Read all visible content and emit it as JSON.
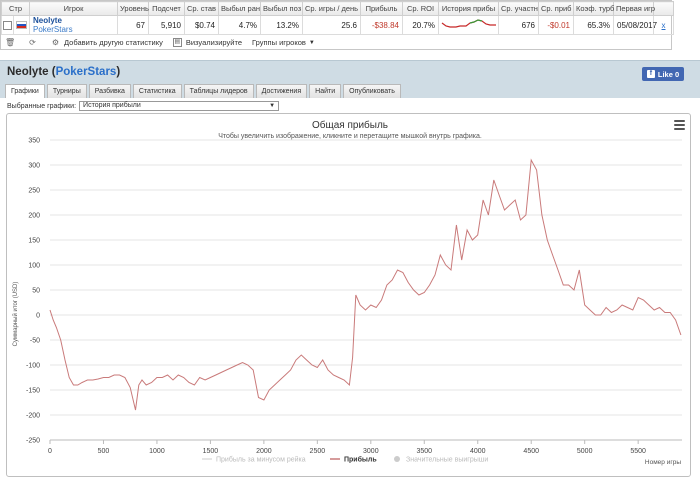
{
  "stats": {
    "columns": [
      "Стр",
      "Игрок",
      "Уровень",
      "Подсчет",
      "Ср. став",
      "Выбыл ран",
      "Выбыл поз",
      "Ср. игры / день",
      "Прибыль",
      "Ср. ROI",
      "История прибы",
      "Ср. участн",
      "Ср. приб",
      "Коэф. турб",
      "Первая игр"
    ],
    "row": {
      "player_name": "Neolyte",
      "player_site": "PokerStars",
      "level": "67",
      "count": "5,910",
      "avg_stake": "$0.74",
      "early_out": "4.7%",
      "late_out": "13.2%",
      "games_per_day": "25.6",
      "profit": "-$38.84",
      "roi": "20.7%",
      "avg_entrants": "676",
      "avg_profit": "-$0.01",
      "turbo_ratio": "65.3%",
      "first_game": "05/08/2017",
      "remove": "x"
    },
    "toolbar": {
      "add_stat": "Добавить другую статистику",
      "visualize": "Визуализируйте",
      "player_groups": "Группы игроков"
    }
  },
  "header": {
    "player": "Neolyte",
    "site": "PokerStars",
    "like_label": "Like 0"
  },
  "tabs": [
    "Графики",
    "Турниры",
    "Разбивка",
    "Статистика",
    "Таблицы лидеров",
    "Достижения",
    "Найти",
    "Опубликовать"
  ],
  "graphs": {
    "label": "Выбранные графики:",
    "selected": "История прибыли"
  },
  "colors": {
    "line": "#c97a7a",
    "header_bg": "#cfdce4",
    "link": "#2a6fc9",
    "negative": "#c0392b"
  },
  "chart_data": {
    "type": "line",
    "title": "Общая прибыль",
    "subtitle": "Чтобы увеличить изображение, кликните и перетащите мышкой внутрь графика.",
    "xlabel": "Номер игры",
    "ylabel": "Суммарный итог (USD)",
    "xlim": [
      0,
      5910
    ],
    "ylim": [
      -250,
      350
    ],
    "x_ticks": [
      0,
      500,
      1000,
      1500,
      2000,
      2500,
      3000,
      3500,
      4000,
      4500,
      5000,
      5500
    ],
    "y_ticks": [
      -250,
      -200,
      -150,
      -100,
      -50,
      0,
      50,
      100,
      150,
      200,
      250,
      300,
      350
    ],
    "grid": true,
    "legend_position": "bottom",
    "legend": [
      "Прибыль за минусом рейка",
      "Прибыль",
      "Значительные выигрыши"
    ],
    "series": [
      {
        "name": "Прибыль",
        "x": [
          0,
          30,
          60,
          100,
          140,
          180,
          220,
          260,
          300,
          350,
          400,
          450,
          500,
          550,
          600,
          650,
          700,
          750,
          800,
          830,
          860,
          900,
          950,
          1000,
          1050,
          1100,
          1150,
          1200,
          1250,
          1300,
          1350,
          1400,
          1450,
          1500,
          1550,
          1600,
          1650,
          1700,
          1750,
          1800,
          1850,
          1900,
          1950,
          2000,
          2050,
          2100,
          2150,
          2200,
          2250,
          2300,
          2350,
          2400,
          2450,
          2500,
          2550,
          2600,
          2650,
          2700,
          2750,
          2800,
          2830,
          2860,
          2900,
          2950,
          3000,
          3050,
          3100,
          3150,
          3200,
          3250,
          3300,
          3350,
          3400,
          3450,
          3500,
          3550,
          3600,
          3650,
          3700,
          3750,
          3800,
          3850,
          3900,
          3950,
          4000,
          4050,
          4100,
          4150,
          4200,
          4250,
          4300,
          4350,
          4400,
          4450,
          4500,
          4550,
          4600,
          4650,
          4700,
          4750,
          4800,
          4850,
          4900,
          4950,
          5000,
          5050,
          5100,
          5150,
          5200,
          5250,
          5300,
          5350,
          5400,
          5450,
          5500,
          5550,
          5600,
          5650,
          5700,
          5750,
          5800,
          5850,
          5900
        ],
        "y": [
          10,
          -10,
          -25,
          -50,
          -90,
          -125,
          -140,
          -140,
          -135,
          -130,
          -130,
          -128,
          -125,
          -125,
          -120,
          -120,
          -125,
          -145,
          -190,
          -140,
          -130,
          -140,
          -135,
          -125,
          -125,
          -120,
          -130,
          -120,
          -125,
          -135,
          -140,
          -125,
          -130,
          -125,
          -120,
          -115,
          -110,
          -105,
          -100,
          -95,
          -100,
          -110,
          -165,
          -170,
          -150,
          -140,
          -130,
          -120,
          -110,
          -90,
          -80,
          -90,
          -100,
          -105,
          -90,
          -110,
          -120,
          -125,
          -130,
          -140,
          -85,
          40,
          20,
          10,
          20,
          15,
          30,
          60,
          70,
          90,
          85,
          65,
          50,
          40,
          45,
          60,
          80,
          120,
          100,
          90,
          180,
          110,
          170,
          150,
          160,
          230,
          200,
          270,
          240,
          210,
          220,
          230,
          190,
          200,
          310,
          290,
          200,
          150,
          120,
          90,
          60,
          60,
          50,
          90,
          20,
          10,
          0,
          0,
          15,
          5,
          10,
          20,
          15,
          10,
          35,
          30,
          20,
          10,
          15,
          5,
          5,
          -10,
          -40
        ]
      }
    ]
  }
}
